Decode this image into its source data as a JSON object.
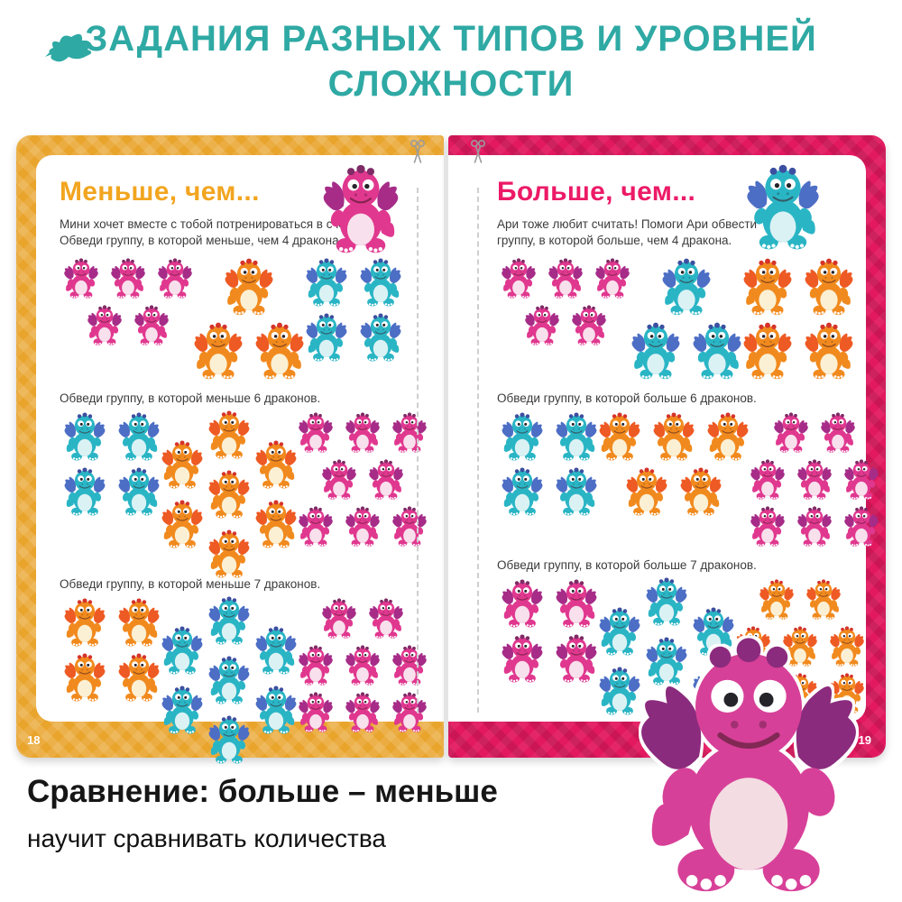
{
  "header": {
    "icon": "bird-icon",
    "title": "ЗАДАНИЯ РАЗНЫХ ТИПОВ И УРОВНЕЙ\nСЛОЖНОСТИ"
  },
  "book": {
    "left_page": {
      "page_number": "18",
      "title": "Меньше, чем...",
      "intro": "Мини хочет вместе с тобой потренироваться в счёте.\nОбведи группу, в которой меньше, чем 4 дракона.",
      "mascot_icon": "pink-dragon-icon",
      "cut_marker_icon": "scissors-icon",
      "exercises": [
        {
          "instruction": "",
          "groups": [
            {
              "color": "pink",
              "count": 5,
              "rows": [
                3,
                2
              ],
              "size": "sm",
              "pattern": "grid"
            },
            {
              "color": "orange",
              "count": 3,
              "rows": [
                1,
                2
              ],
              "size": "lg",
              "pattern": "grid"
            },
            {
              "color": "teal",
              "count": 4,
              "rows": [
                2,
                2
              ],
              "size": "md",
              "pattern": "grid"
            }
          ]
        },
        {
          "instruction": "Обведи группу, в которой меньше 6 драконов.",
          "groups": [
            {
              "color": "teal",
              "count": 4,
              "rows": [
                2,
                2
              ],
              "size": "md",
              "pattern": "grid"
            },
            {
              "color": "orange",
              "count": 7,
              "rows": [
                1,
                2,
                1,
                2,
                1
              ],
              "size": "md",
              "pattern": "diamond"
            },
            {
              "color": "pink",
              "count": 8,
              "rows": [
                3,
                2,
                3
              ],
              "size": "sm",
              "pattern": "grid"
            }
          ]
        },
        {
          "instruction": "Обведи группу, в которой меньше 7 драконов.",
          "groups": [
            {
              "color": "orange",
              "count": 4,
              "rows": [
                2,
                2
              ],
              "size": "md",
              "pattern": "grid"
            },
            {
              "color": "teal",
              "count": 7,
              "rows": [
                1,
                2,
                1,
                2,
                1
              ],
              "size": "md",
              "pattern": "diamond"
            },
            {
              "color": "pink",
              "count": 8,
              "rows": [
                2,
                3,
                3
              ],
              "size": "sm",
              "pattern": "grid"
            }
          ]
        }
      ]
    },
    "right_page": {
      "page_number": "19",
      "title": "Больше, чем...",
      "intro": "Ари тоже любит считать! Помоги Ари обвести\nгруппу, в которой больше, чем 4 дракона.",
      "mascot_icon": "teal-dragon-icon",
      "cut_marker_icon": "scissors-icon",
      "exercises": [
        {
          "instruction": "",
          "groups": [
            {
              "color": "pink",
              "count": 5,
              "rows": [
                3,
                2
              ],
              "size": "sm",
              "pattern": "grid"
            },
            {
              "color": "teal",
              "count": 3,
              "rows": [
                1,
                2
              ],
              "size": "lg",
              "pattern": "grid"
            },
            {
              "color": "orange",
              "count": 4,
              "rows": [
                2,
                2
              ],
              "size": "lg",
              "pattern": "grid"
            }
          ]
        },
        {
          "instruction": "Обведи группу, в которой больше 6 драконов.",
          "groups": [
            {
              "color": "teal",
              "count": 4,
              "rows": [
                2,
                2
              ],
              "size": "md",
              "pattern": "grid"
            },
            {
              "color": "orange",
              "count": 5,
              "rows": [
                3,
                2
              ],
              "size": "md",
              "pattern": "grid"
            },
            {
              "color": "pink",
              "count": 8,
              "rows": [
                2,
                3,
                3
              ],
              "size": "sm",
              "pattern": "grid"
            }
          ]
        },
        {
          "instruction": "Обведи группу, в которой больше 7 драконов.",
          "groups": [
            {
              "color": "pink",
              "count": 4,
              "rows": [
                2,
                2
              ],
              "size": "md",
              "pattern": "grid"
            },
            {
              "color": "teal",
              "count": 7,
              "rows": [
                1,
                2,
                1,
                2,
                1
              ],
              "size": "md",
              "pattern": "diamond"
            },
            {
              "color": "orange",
              "count": 8,
              "rows": [
                2,
                3,
                3
              ],
              "size": "sm",
              "pattern": "grid"
            }
          ]
        }
      ]
    }
  },
  "footer": {
    "title": "Сравнение: больше – меньше",
    "subtitle": "научит сравнивать количества",
    "mascot_icon": "big-pink-dragon-icon"
  },
  "colors": {
    "accent_teal": "#2FA9A4",
    "panel_yellow": "#E9A42C",
    "panel_pink": "#E2195F",
    "title_orange": "#F2A51F",
    "title_magenta": "#EC1A67",
    "text_dark": "#3B3B3B",
    "dashed_line": "#CFCFCF",
    "scissors_gray": "#9B9B9B",
    "dragon_pink_body": "#E0388F",
    "dragon_pink_belly": "#F8E0EC",
    "dragon_pink_wing": "#A62C88",
    "dragon_pink_crest": "#7E2B66",
    "dragon_orange_body": "#F18A1E",
    "dragon_orange_belly": "#FBF0D4",
    "dragon_orange_wing": "#EE5A24",
    "dragon_orange_crest": "#D5342A",
    "dragon_teal_body": "#2AB5C5",
    "dragon_teal_belly": "#DBF2F4",
    "dragon_teal_wing": "#4D6EC5",
    "dragon_teal_crest": "#3C4FA0",
    "big_dragon_body": "#D74098",
    "big_dragon_belly": "#F3DCE2",
    "big_dragon_wing": "#8B2B7D"
  }
}
